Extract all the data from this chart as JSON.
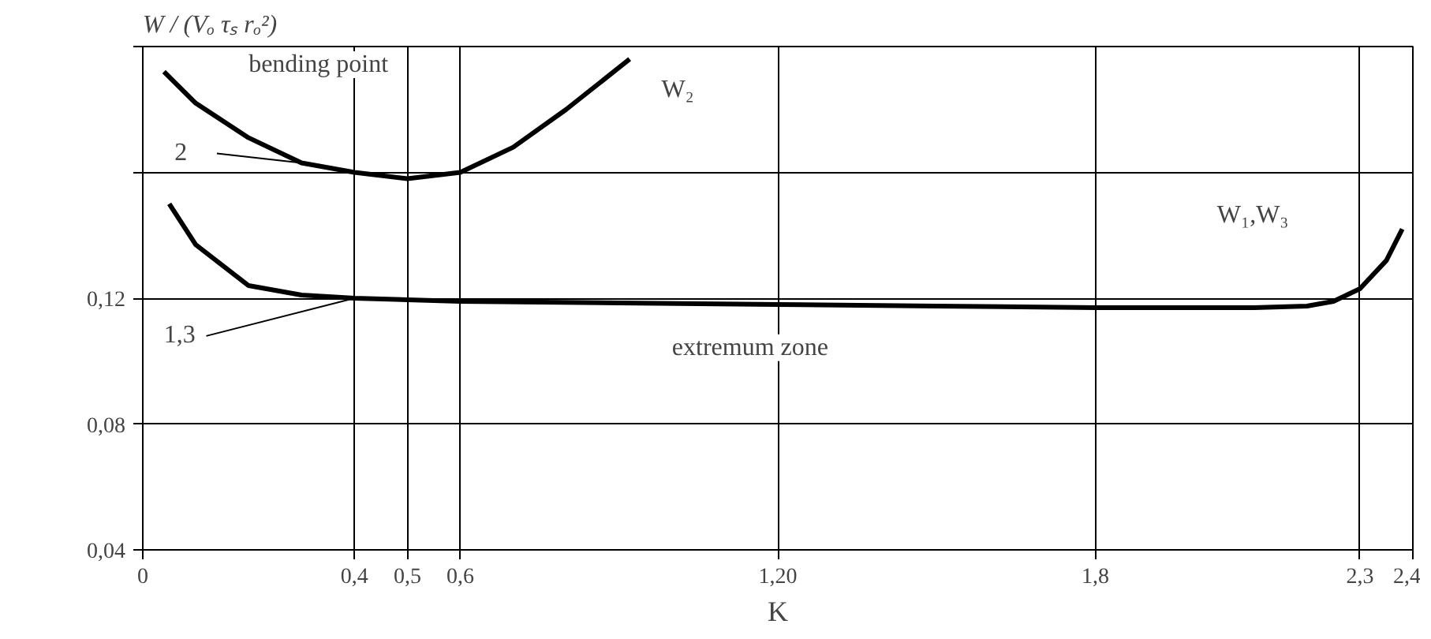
{
  "chart_data": {
    "type": "line",
    "ylabel": "W / (Vₒ τₛ rₒ²)",
    "xlabel": "K",
    "xlim": [
      0,
      2.4
    ],
    "ylim": [
      0.04,
      0.2
    ],
    "xticks": [
      0,
      {
        "value": 0.4,
        "label": "0,4"
      },
      {
        "value": 0.5,
        "label": "0,5"
      },
      {
        "value": 0.6,
        "label": "0,6"
      },
      {
        "value": 1.2,
        "label": "1,20"
      },
      {
        "value": 1.8,
        "label": "1,8"
      },
      {
        "value": 2.3,
        "label": "2,3"
      },
      {
        "value": 2.4,
        "label": "2,4"
      }
    ],
    "yticks": [
      {
        "value": 0.04,
        "label": "0,04"
      },
      {
        "value": 0.08,
        "label": "0,08"
      },
      {
        "value": 0.12,
        "label": "0,12"
      },
      {
        "value": 0.16,
        "label": null
      },
      {
        "value": 0.2,
        "label": null
      }
    ],
    "grid": true,
    "line_style": "solid",
    "series": [
      {
        "name": "2",
        "color": "#000000",
        "x": [
          0.04,
          0.1,
          0.2,
          0.3,
          0.4,
          0.5,
          0.6,
          0.7,
          0.8,
          0.92
        ],
        "values": [
          0.192,
          0.182,
          0.171,
          0.163,
          0.16,
          0.158,
          0.16,
          0.168,
          0.18,
          0.196
        ]
      },
      {
        "name": "1,3",
        "color": "#000000",
        "x": [
          0.05,
          0.1,
          0.2,
          0.3,
          0.4,
          0.6,
          0.9,
          1.2,
          1.5,
          1.8,
          2.1,
          2.2,
          2.25,
          2.3,
          2.35,
          2.38
        ],
        "values": [
          0.15,
          0.137,
          0.124,
          0.121,
          0.12,
          0.119,
          0.1185,
          0.118,
          0.1175,
          0.117,
          0.117,
          0.1175,
          0.119,
          0.123,
          0.132,
          0.142
        ]
      }
    ],
    "annotations": [
      "bending point",
      "extremum zone",
      "W₂",
      "W₁,W₃"
    ]
  }
}
